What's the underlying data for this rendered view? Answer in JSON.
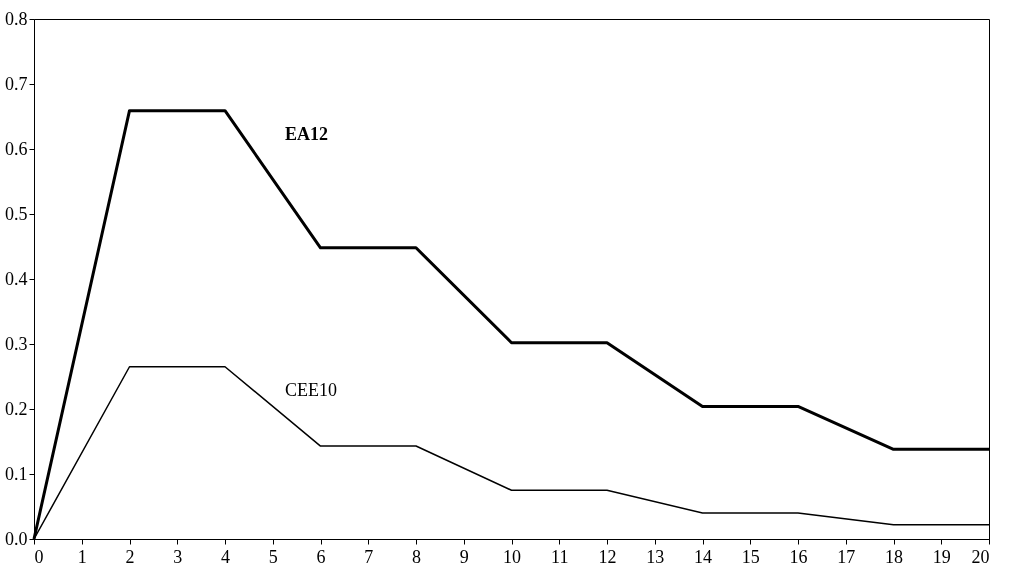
{
  "chart_data": {
    "type": "line",
    "x": [
      0,
      2,
      4,
      6,
      8,
      10,
      12,
      14,
      16,
      18,
      20
    ],
    "series": [
      {
        "name": "EA12",
        "color": "#000000",
        "values": [
          0,
          0.659,
          0.659,
          0.448,
          0.448,
          0.302,
          0.302,
          0.204,
          0.204,
          0.138,
          0.138
        ]
      },
      {
        "name": "CEE10",
        "color": "#000000",
        "values": [
          0,
          0.265,
          0.265,
          0.143,
          0.143,
          0.075,
          0.075,
          0.04,
          0.04,
          0.022,
          0.022
        ]
      }
    ],
    "xlim": [
      0,
      20
    ],
    "xticks": [
      0,
      1,
      2,
      3,
      4,
      5,
      6,
      7,
      8,
      9,
      10,
      11,
      12,
      13,
      14,
      15,
      16,
      17,
      18,
      19,
      20
    ],
    "ylim": [
      0,
      0.8
    ],
    "yticks": [
      {
        "value": 0,
        "label": "0.0"
      },
      {
        "value": 0.1,
        "label": "0.1"
      },
      {
        "value": 0.2,
        "label": "0.2"
      },
      {
        "value": 0.3,
        "label": "0.3"
      },
      {
        "value": 0.4,
        "label": "0.4"
      },
      {
        "value": 0.5,
        "label": "0.5"
      },
      {
        "value": 0.6,
        "label": "0.6"
      },
      {
        "value": 0.7,
        "label": "0.7"
      },
      {
        "value": 0.8,
        "label": "0.8"
      }
    ],
    "grid": false,
    "legend": false
  }
}
